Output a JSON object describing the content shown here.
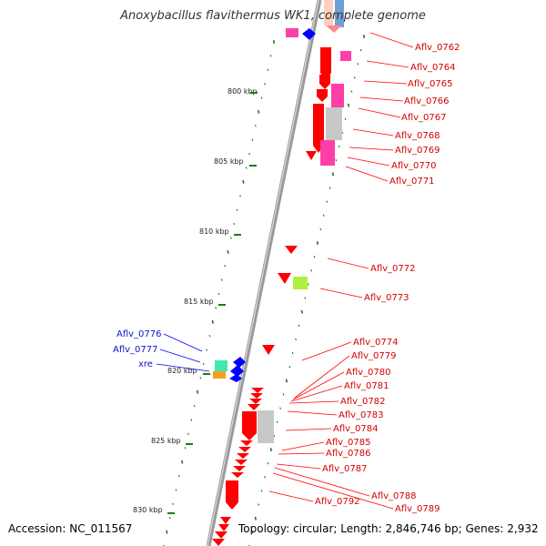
{
  "title": "Anoxybacillus flavithermus WK1, complete genome",
  "footer": {
    "accession": "Accession: NC_011567",
    "topology": "Topology: circular; Length: 2,846,746 bp; Genes: 2,932"
  },
  "colors": {
    "forward_cds": "#ff0000",
    "forward_label": "#d40000",
    "reverse_cds": "#0000ff",
    "reverse_label": "#1010c8",
    "tick": "#1a7a1a",
    "backbone": "#808080",
    "feature_pink": "#ff3fa8",
    "feature_gray": "#c8c8c8",
    "feature_lime": "#b0f040",
    "feature_teal": "#40e8b0",
    "feature_orange": "#f0a020",
    "feature_blue": "#6ea0d8"
  },
  "kbp_labels": [
    "800 kbp",
    "805 kbp",
    "810 kbp",
    "815 kbp",
    "820 kbp",
    "825 kbp",
    "830 kbp"
  ],
  "forward_genes": [
    "Aflv_0762",
    "Aflv_0764",
    "Aflv_0765",
    "Aflv_0766",
    "Aflv_0767",
    "Aflv_0768",
    "Aflv_0769",
    "Aflv_0770",
    "Aflv_0771",
    "Aflv_0772",
    "Aflv_0773",
    "Aflv_0774",
    "Aflv_0779",
    "Aflv_0780",
    "Aflv_0781",
    "Aflv_0782",
    "Aflv_0783",
    "Aflv_0784",
    "Aflv_0785",
    "Aflv_0786",
    "Aflv_0787",
    "Aflv_0788",
    "Aflv_0789",
    "Aflv_0792"
  ],
  "reverse_genes": [
    "Aflv_0776",
    "Aflv_0777",
    "xre"
  ]
}
